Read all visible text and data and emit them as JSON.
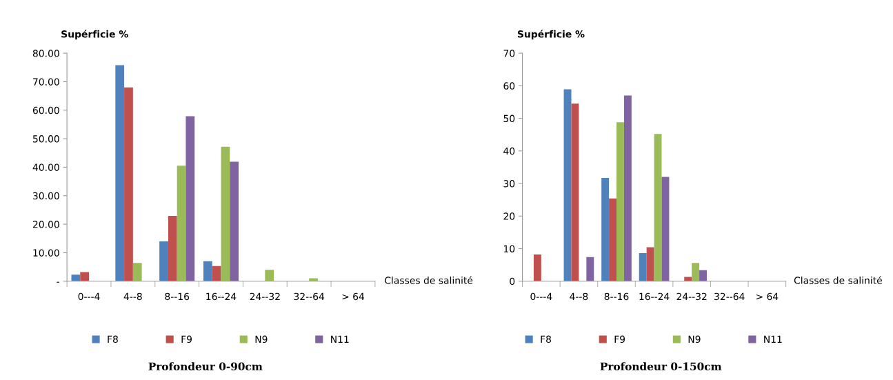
{
  "chart_data": [
    {
      "type": "bar",
      "title": "Profondeur 0-90cm",
      "xlabel": "Classes de salinité",
      "ylabel": "Supérficie %",
      "categories": [
        "0---4",
        "4--8",
        "8--16",
        "16--24",
        "24--32",
        "32--64",
        "> 64"
      ],
      "series": [
        {
          "name": "F8",
          "color": "#4f81bd",
          "values": [
            2.3,
            75.8,
            14.0,
            7.0,
            0,
            0,
            0
          ]
        },
        {
          "name": "F9",
          "color": "#c0504d",
          "values": [
            3.2,
            68.0,
            22.9,
            5.3,
            0,
            0,
            0
          ]
        },
        {
          "name": "N9",
          "color": "#9bbb59",
          "values": [
            0,
            6.4,
            40.5,
            47.2,
            4.0,
            1.0,
            0
          ]
        },
        {
          "name": "N11",
          "color": "#8064a2",
          "values": [
            0,
            0,
            57.9,
            41.9,
            0,
            0,
            0
          ]
        }
      ],
      "ylim": [
        0,
        80
      ],
      "yticks": [
        {
          "value": 0,
          "label": "-"
        },
        {
          "value": 10,
          "label": "10.00"
        },
        {
          "value": 20,
          "label": "20.00"
        },
        {
          "value": 30,
          "label": "30.00"
        },
        {
          "value": 40,
          "label": "40.00"
        },
        {
          "value": 50,
          "label": "50.00"
        },
        {
          "value": 60,
          "label": "60.00"
        },
        {
          "value": 70,
          "label": "70.00"
        },
        {
          "value": 80,
          "label": "80.00"
        }
      ],
      "grid": false,
      "legend": "bottom"
    },
    {
      "type": "bar",
      "title": "Profondeur 0-150cm",
      "xlabel": "Classes de salinité",
      "ylabel": "Supérficie %",
      "categories": [
        "0---4",
        "4--8",
        "8--16",
        "16--24",
        "24--32",
        "32--64",
        "> 64"
      ],
      "series": [
        {
          "name": "F8",
          "color": "#4f81bd",
          "values": [
            null,
            58.9,
            31.7,
            8.6,
            null,
            0,
            0
          ]
        },
        {
          "name": "F9",
          "color": "#c0504d",
          "values": [
            8.2,
            54.5,
            25.4,
            10.4,
            1.3,
            0,
            0
          ]
        },
        {
          "name": "N9",
          "color": "#9bbb59",
          "values": [
            0,
            null,
            48.8,
            45.2,
            5.6,
            0,
            0
          ]
        },
        {
          "name": "N11",
          "color": "#8064a2",
          "values": [
            0,
            7.4,
            57.0,
            32.0,
            3.4,
            0,
            0
          ]
        }
      ],
      "ylim": [
        0,
        70
      ],
      "yticks": [
        0,
        10,
        20,
        30,
        40,
        50,
        60,
        70
      ],
      "grid": false,
      "legend": "bottom"
    }
  ]
}
